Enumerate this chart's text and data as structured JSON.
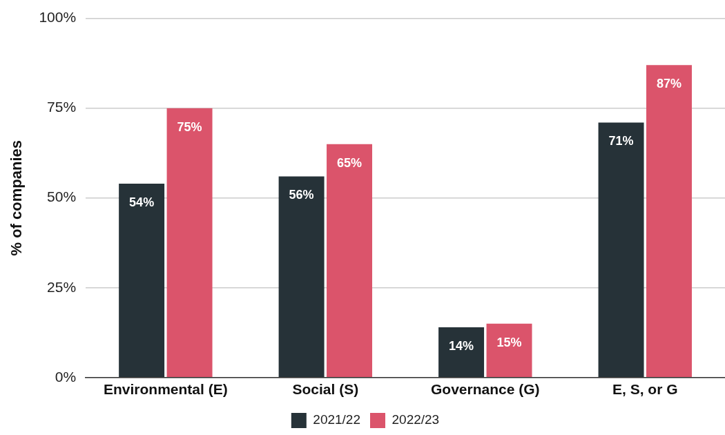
{
  "chart_data": {
    "type": "bar",
    "ylabel": "% of companies",
    "categories": [
      "Environmental (E)",
      "Social (S)",
      "Governance (G)",
      "E, S, or G"
    ],
    "series": [
      {
        "name": "2021/22",
        "color": "#263238",
        "values": [
          54,
          56,
          14,
          71
        ],
        "value_labels": [
          "54%",
          "56%",
          "14%",
          "71%"
        ]
      },
      {
        "name": "2022/23",
        "color": "#db546b",
        "values": [
          75,
          65,
          15,
          87
        ],
        "value_labels": [
          "75%",
          "65%",
          "15%",
          "87%"
        ]
      }
    ],
    "ylim": [
      0,
      100
    ],
    "yticks": [
      {
        "value": 0,
        "label": "0%"
      },
      {
        "value": 25,
        "label": "25%"
      },
      {
        "value": 50,
        "label": "50%"
      },
      {
        "value": 75,
        "label": "75%"
      },
      {
        "value": 100,
        "label": "100%"
      }
    ],
    "grid": "y",
    "legend": "bottom"
  }
}
